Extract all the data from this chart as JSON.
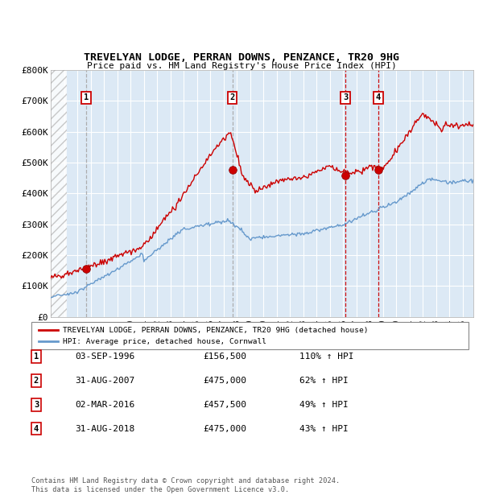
{
  "title": "TREVELYAN LODGE, PERRAN DOWNS, PENZANCE, TR20 9HG",
  "subtitle": "Price paid vs. HM Land Registry's House Price Index (HPI)",
  "xlim": [
    1994.0,
    2025.8
  ],
  "ylim": [
    0,
    800000
  ],
  "yticks": [
    0,
    100000,
    200000,
    300000,
    400000,
    500000,
    600000,
    700000,
    800000
  ],
  "ytick_labels": [
    "£0",
    "£100K",
    "£200K",
    "£300K",
    "£400K",
    "£500K",
    "£600K",
    "£700K",
    "£800K"
  ],
  "sale_points": [
    {
      "label": "1",
      "date_year": 1996.67,
      "price": 156500,
      "vline_color": "#aaaaaa"
    },
    {
      "label": "2",
      "date_year": 2007.66,
      "price": 475000,
      "vline_color": "#aaaaaa"
    },
    {
      "label": "3",
      "date_year": 2016.17,
      "price": 457500,
      "vline_color": "#cc0000"
    },
    {
      "label": "4",
      "date_year": 2018.66,
      "price": 475000,
      "vline_color": "#cc0000"
    }
  ],
  "hpi_line_color": "#6699cc",
  "price_line_color": "#cc0000",
  "bg_color": "#dce9f5",
  "grid_color": "#ffffff",
  "legend_label_red": "TREVELYAN LODGE, PERRAN DOWNS, PENZANCE, TR20 9HG (detached house)",
  "legend_label_blue": "HPI: Average price, detached house, Cornwall",
  "table_rows": [
    [
      "1",
      "03-SEP-1996",
      "£156,500",
      "110% ↑ HPI"
    ],
    [
      "2",
      "31-AUG-2007",
      "£475,000",
      "62% ↑ HPI"
    ],
    [
      "3",
      "02-MAR-2016",
      "£457,500",
      "49% ↑ HPI"
    ],
    [
      "4",
      "31-AUG-2018",
      "£475,000",
      "43% ↑ HPI"
    ]
  ],
  "footer": "Contains HM Land Registry data © Crown copyright and database right 2024.\nThis data is licensed under the Open Government Licence v3.0."
}
